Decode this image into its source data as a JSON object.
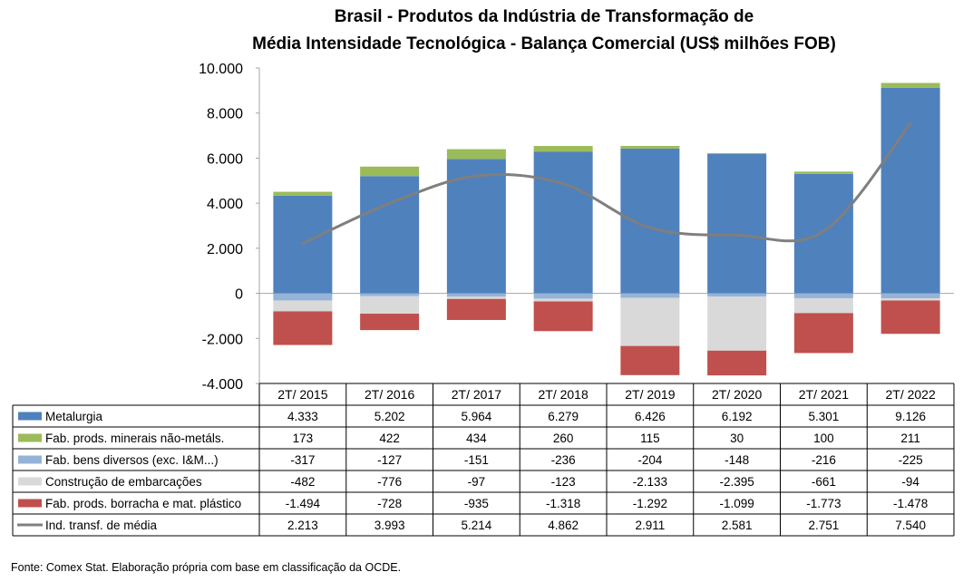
{
  "chart_data": {
    "type": "bar",
    "title_line1": "Brasil - Produtos da Indústria de Transformação de",
    "title_line2": "Média Intensidade Tecnológica - Balança Comercial (US$ milhões FOB)",
    "categories": [
      "2T/ 2015",
      "2T/ 2016",
      "2T/ 2017",
      "2T/ 2018",
      "2T/ 2019",
      "2T/ 2020",
      "2T/ 2021",
      "2T/ 2022"
    ],
    "ylim": [
      -4000,
      10000
    ],
    "yticks": [
      10000,
      8000,
      6000,
      4000,
      2000,
      0,
      -2000,
      -4000
    ],
    "ytick_labels": [
      "10.000",
      "8.000",
      "6.000",
      "4.000",
      "2.000",
      "0",
      "-2.000",
      "-4.000"
    ],
    "stacked": true,
    "grid": false,
    "legend": "data-table",
    "series": [
      {
        "name": "Metalurgia",
        "type": "bar",
        "color": "#4F81BD",
        "values": [
          4333,
          5202,
          5964,
          6279,
          6426,
          6192,
          5301,
          9126
        ],
        "labels": [
          "4.333",
          "5.202",
          "5.964",
          "6.279",
          "6.426",
          "6.192",
          "5.301",
          "9.126"
        ]
      },
      {
        "name": "Fab. prods. minerais não-metáls.",
        "type": "bar",
        "color": "#9BBB59",
        "values": [
          173,
          422,
          434,
          260,
          115,
          30,
          100,
          211
        ],
        "labels": [
          "173",
          "422",
          "434",
          "260",
          "115",
          "30",
          "100",
          "211"
        ]
      },
      {
        "name": "Fab. bens diversos (exc. I&M...)",
        "type": "bar",
        "color": "#95B3D7",
        "values": [
          -317,
          -127,
          -151,
          -236,
          -204,
          -148,
          -216,
          -225
        ],
        "labels": [
          "-317",
          "-127",
          "-151",
          "-236",
          "-204",
          "-148",
          "-216",
          "-225"
        ]
      },
      {
        "name": "Construção de embarcações",
        "type": "bar",
        "color": "#D9D9D9",
        "values": [
          -482,
          -776,
          -97,
          -123,
          -2133,
          -2395,
          -661,
          -94
        ],
        "labels": [
          "-482",
          "-776",
          "-97",
          "-123",
          "-2.133",
          "-2.395",
          "-661",
          "-94"
        ]
      },
      {
        "name": "Fab. prods. borracha e mat. plástico",
        "type": "bar",
        "color": "#C0504D",
        "values": [
          -1494,
          -728,
          -935,
          -1318,
          -1292,
          -1099,
          -1773,
          -1478
        ],
        "labels": [
          "-1.494",
          "-728",
          "-935",
          "-1.318",
          "-1.292",
          "-1.099",
          "-1.773",
          "-1.478"
        ]
      },
      {
        "name": "Ind. transf. de média",
        "type": "line",
        "color": "#7F7F7F",
        "values": [
          2213,
          3993,
          5214,
          4862,
          2911,
          2581,
          2751,
          7540
        ],
        "labels": [
          "2.213",
          "3.993",
          "5.214",
          "4.862",
          "2.911",
          "2.581",
          "2.751",
          "7.540"
        ]
      }
    ],
    "source": "Fonte:  Comex Stat. Elaboração própria com base em classificação da OCDE."
  }
}
